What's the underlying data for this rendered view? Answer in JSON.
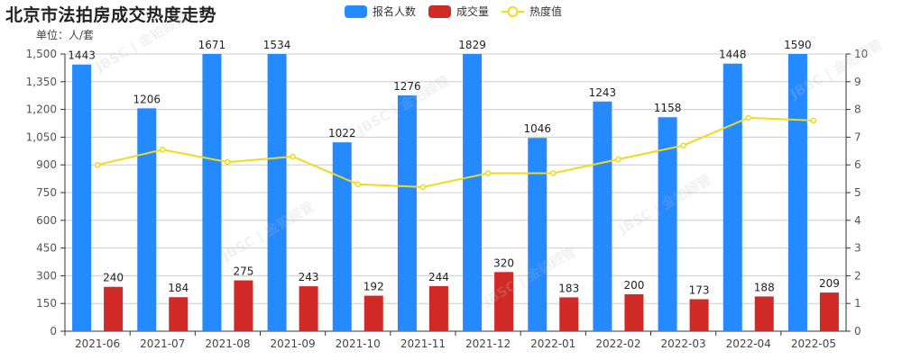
{
  "title": "北京市法拍房成交热度走势",
  "unit_label": "单位：人/套",
  "legend": [
    {
      "label": "报名人数",
      "color": "#2589ff",
      "type": "bar"
    },
    {
      "label": "成交量",
      "color": "#d12a26",
      "type": "bar"
    },
    {
      "label": "热度值",
      "color": "#f2d91c",
      "type": "line"
    }
  ],
  "chart_data": {
    "type": "bar",
    "title": "北京市法拍房成交热度走势",
    "ylabel": "单位：人/套",
    "categories": [
      "2021-06",
      "2021-07",
      "2021-08",
      "2021-09",
      "2021-10",
      "2021-11",
      "2021-12",
      "2022-01",
      "2022-02",
      "2022-03",
      "2022-04",
      "2022-05"
    ],
    "series": [
      {
        "name": "报名人数",
        "type": "bar",
        "axis": "left",
        "color": "#2589ff",
        "values": [
          1443,
          1206,
          1671,
          1534,
          1022,
          1276,
          1829,
          1046,
          1243,
          1158,
          1448,
          1590
        ]
      },
      {
        "name": "成交量",
        "type": "bar",
        "axis": "left",
        "color": "#d12a26",
        "values": [
          240,
          184,
          275,
          243,
          192,
          244,
          320,
          183,
          200,
          173,
          188,
          209
        ]
      },
      {
        "name": "热度值",
        "type": "line",
        "axis": "right",
        "color": "#f2d91c",
        "values": [
          6.0,
          6.55,
          6.1,
          6.3,
          5.3,
          5.2,
          5.7,
          5.7,
          6.2,
          6.7,
          7.7,
          7.6
        ]
      }
    ],
    "left_axis": {
      "min": 0,
      "max": 1500,
      "ticks": [
        "0",
        "150",
        "300",
        "450",
        "600",
        "750",
        "900",
        "1,050",
        "1,200",
        "1,350",
        "1,500"
      ]
    },
    "right_axis": {
      "min": 0,
      "max": 10,
      "ticks": [
        "0",
        "1",
        "2",
        "3",
        "4",
        "5",
        "6",
        "7",
        "8",
        "9",
        "10"
      ]
    },
    "grid": true,
    "legend_position": "top-center"
  },
  "watermark": "JBSC | 金铂顾管"
}
